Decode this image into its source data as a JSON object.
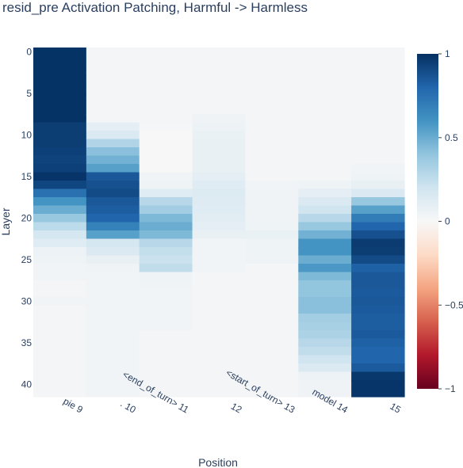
{
  "chart_data": {
    "type": "heatmap",
    "title": "resid_pre Activation Patching, Harmful -> Harmless",
    "xlabel": "Position",
    "ylabel": "Layer",
    "x_categories": [
      "pie 9",
      ". 10",
      "<end_of_turn> 11",
      "12",
      "<start_of_turn> 13",
      "model 14",
      "15"
    ],
    "y_categories": [
      0,
      1,
      2,
      3,
      4,
      5,
      6,
      7,
      8,
      9,
      10,
      11,
      12,
      13,
      14,
      15,
      16,
      17,
      18,
      19,
      20,
      21,
      22,
      23,
      24,
      25,
      26,
      27,
      28,
      29,
      30,
      31,
      32,
      33,
      34,
      35,
      36,
      37,
      38,
      39,
      40,
      41
    ],
    "y_ticks": [
      0,
      5,
      10,
      15,
      20,
      25,
      30,
      35,
      40
    ],
    "y_tick_labels": [
      "0",
      "5",
      "10",
      "15",
      "20",
      "25",
      "30",
      "35",
      "40"
    ],
    "colorscale": "RdBu",
    "zmin": -1,
    "zmax": 1,
    "colorbar_ticks": [
      1,
      0.5,
      0,
      -0.5,
      -1
    ],
    "colorbar_tick_labels": [
      "1",
      "0.5",
      "0",
      "−0.5",
      "−1"
    ],
    "values_by_position": {
      "pie 9": [
        0.99,
        0.99,
        0.99,
        0.99,
        0.99,
        0.99,
        0.99,
        0.99,
        0.99,
        0.95,
        0.95,
        0.95,
        0.94,
        0.93,
        0.94,
        0.98,
        0.92,
        0.75,
        0.6,
        0.5,
        0.38,
        0.27,
        0.18,
        0.12,
        0.06,
        0.05,
        0.03,
        0.03,
        0.02,
        0.02,
        0.03,
        0.02,
        0.02,
        0.02,
        0.02,
        0.02,
        0.02,
        0.02,
        0.02,
        0.02,
        0.02,
        0.02
      ],
      ". 10": [
        0.02,
        0.02,
        0.02,
        0.02,
        0.02,
        0.02,
        0.02,
        0.02,
        0.02,
        0.1,
        0.15,
        0.3,
        0.42,
        0.48,
        0.55,
        0.85,
        0.88,
        0.9,
        0.85,
        0.83,
        0.8,
        0.68,
        0.55,
        0.18,
        0.15,
        0.08,
        0.04,
        0.03,
        0.03,
        0.03,
        0.03,
        0.03,
        0.03,
        0.03,
        0.03,
        0.03,
        0.03,
        0.03,
        0.03,
        0.03,
        0.03,
        0.03
      ],
      "<end_of_turn> 11": [
        0.02,
        0.02,
        0.02,
        0.02,
        0.02,
        0.02,
        0.02,
        0.02,
        0.02,
        0.01,
        0.0,
        0.0,
        0.0,
        0.0,
        0.0,
        0.03,
        0.05,
        0.12,
        0.28,
        0.35,
        0.45,
        0.5,
        0.45,
        0.28,
        0.24,
        0.22,
        0.25,
        0.05,
        0.04,
        0.03,
        0.03,
        0.03,
        0.03,
        0.03,
        0.02,
        0.02,
        0.02,
        0.02,
        0.02,
        0.02,
        0.02,
        0.02
      ],
      "12": [
        0.02,
        0.02,
        0.02,
        0.02,
        0.02,
        0.02,
        0.02,
        0.02,
        0.04,
        0.06,
        0.07,
        0.08,
        0.08,
        0.08,
        0.08,
        0.1,
        0.12,
        0.14,
        0.13,
        0.12,
        0.11,
        0.1,
        0.08,
        0.03,
        0.03,
        0.03,
        0.03,
        0.02,
        0.02,
        0.02,
        0.02,
        0.02,
        0.02,
        0.02,
        0.02,
        0.02,
        0.02,
        0.02,
        0.02,
        0.02,
        0.02,
        0.02
      ],
      "<start_of_turn> 13": [
        0.02,
        0.02,
        0.02,
        0.02,
        0.02,
        0.02,
        0.02,
        0.02,
        0.02,
        0.02,
        0.02,
        0.02,
        0.02,
        0.02,
        0.02,
        0.02,
        0.03,
        0.04,
        0.04,
        0.04,
        0.04,
        0.05,
        0.07,
        0.05,
        0.05,
        0.04,
        0.02,
        0.02,
        0.02,
        0.02,
        0.02,
        0.02,
        0.02,
        0.02,
        0.02,
        0.02,
        0.02,
        0.02,
        0.02,
        0.02,
        0.02,
        0.02
      ],
      "model 14": [
        0.02,
        0.02,
        0.02,
        0.02,
        0.02,
        0.02,
        0.02,
        0.02,
        0.02,
        0.02,
        0.02,
        0.02,
        0.02,
        0.02,
        0.02,
        0.02,
        0.05,
        0.1,
        0.15,
        0.2,
        0.28,
        0.38,
        0.48,
        0.6,
        0.6,
        0.5,
        0.58,
        0.45,
        0.4,
        0.4,
        0.42,
        0.42,
        0.35,
        0.33,
        0.32,
        0.28,
        0.25,
        0.2,
        0.15,
        0.06,
        0.04,
        0.04
      ],
      "15": [
        0.02,
        0.02,
        0.02,
        0.02,
        0.02,
        0.02,
        0.02,
        0.02,
        0.02,
        0.02,
        0.02,
        0.02,
        0.02,
        0.02,
        0.03,
        0.05,
        0.08,
        0.15,
        0.38,
        0.55,
        0.7,
        0.8,
        0.88,
        0.96,
        0.95,
        0.9,
        0.82,
        0.85,
        0.85,
        0.84,
        0.85,
        0.84,
        0.83,
        0.83,
        0.84,
        0.82,
        0.8,
        0.8,
        0.84,
        0.97,
        0.98,
        0.98
      ]
    }
  }
}
